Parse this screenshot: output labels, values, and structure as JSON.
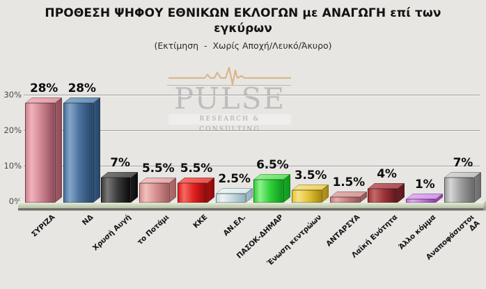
{
  "header": {
    "title": "ΠΡΟΘΕΣΗ ΨΗΦΟΥ ΕΘΝΙΚΩΝ ΕΚΛΟΓΩΝ με ΑΝΑΓΩΓΗ επί των εγκύρων",
    "subtitle": "(Εκτίμηση  -  Χωρίς Αποχή/Λευκό/Άκυρο)"
  },
  "watermark": {
    "name": "PULSE",
    "tagline": "RESEARCH & CONSULTING",
    "ecg_color": "#d9ae7c"
  },
  "chart_data": {
    "type": "bar",
    "title": "ΠΡΟΘΕΣΗ ΨΗΦΟΥ ΕΘΝΙΚΩΝ ΕΚΛΟΓΩΝ με ΑΝΑΓΩΓΗ επί των εγκύρων",
    "subtitle": "(Εκτίμηση - Χωρίς Αποχή/Λευκό/Άκυρο)",
    "xlabel": "",
    "ylabel": "",
    "ylim": [
      0,
      30
    ],
    "grid": true,
    "legend": false,
    "yticks": [
      {
        "value": 0,
        "label": "0%"
      },
      {
        "value": 10,
        "label": "10%"
      },
      {
        "value": 20,
        "label": "20%"
      },
      {
        "value": 30,
        "label": "30%"
      }
    ],
    "categories": [
      "ΣΥΡΙΖΑ",
      "ΝΔ",
      "Χρυσή Αυγή",
      "το Ποτάμι",
      "ΚΚΕ",
      "ΑΝ.ΕΛ.",
      "ΠΑΣΟΚ-ΔΗΜΑΡ",
      "Ένωση κεντρώων",
      "ΑΝΤΑΡΣΥΑ",
      "Λαϊκή Ενότητα",
      "Άλλο κόμμα",
      "Αναποφάσιστοι ΔΑ"
    ],
    "values": [
      28,
      28,
      7,
      5.5,
      5.5,
      2.5,
      6.5,
      3.5,
      1.5,
      4,
      1,
      7
    ],
    "value_labels": [
      "28%",
      "28%",
      "7%",
      "5.5%",
      "5.5%",
      "2.5%",
      "6.5%",
      "3.5%",
      "1.5%",
      "4%",
      "1%",
      "7%"
    ],
    "bar_colors": [
      {
        "base": "#cc8490",
        "light": "#f0b3bb",
        "dark": "#8e4e5a",
        "top": "#dfa0a8",
        "side": "#9e5a65"
      },
      {
        "base": "#4a709b",
        "light": "#85a6c8",
        "dark": "#27466b",
        "top": "#6c92b8",
        "side": "#34567d"
      },
      {
        "base": "#3c3c3c",
        "light": "#787878",
        "dark": "#0a0a0a",
        "top": "#595959",
        "side": "#1c1c1c"
      },
      {
        "base": "#d69190",
        "light": "#f2c0bd",
        "dark": "#a35f5f",
        "top": "#e3aba9",
        "side": "#b17070"
      },
      {
        "base": "#df1f1f",
        "light": "#f66a62",
        "dark": "#8e0909",
        "top": "#ea5552",
        "side": "#a51212"
      },
      {
        "base": "#c7dae0",
        "light": "#ecf3f4",
        "dark": "#92b2bc",
        "top": "#dcebee",
        "side": "#a2c0c9"
      },
      {
        "base": "#31d13c",
        "light": "#90f18c",
        "dark": "#0e9a1b",
        "top": "#63e364",
        "side": "#17a824"
      },
      {
        "base": "#e3c438",
        "light": "#f6e286",
        "dark": "#a8890f",
        "top": "#eed25f",
        "side": "#b6961b"
      },
      {
        "base": "#c98082",
        "light": "#e5aeac",
        "dark": "#96565a",
        "top": "#d89d9b",
        "side": "#a66163"
      },
      {
        "base": "#9c3439",
        "light": "#c3686a",
        "dark": "#5c161c",
        "top": "#b0545a",
        "side": "#6c2026"
      },
      {
        "base": "#c579de",
        "light": "#e2aff2",
        "dark": "#8e40ad",
        "top": "#d69aea",
        "side": "#9c4fb9"
      },
      {
        "base": "#9e9e9e",
        "light": "#d6d6d6",
        "dark": "#6a6a6a",
        "top": "#c4c4c4",
        "side": "#7b7b7b"
      }
    ]
  }
}
